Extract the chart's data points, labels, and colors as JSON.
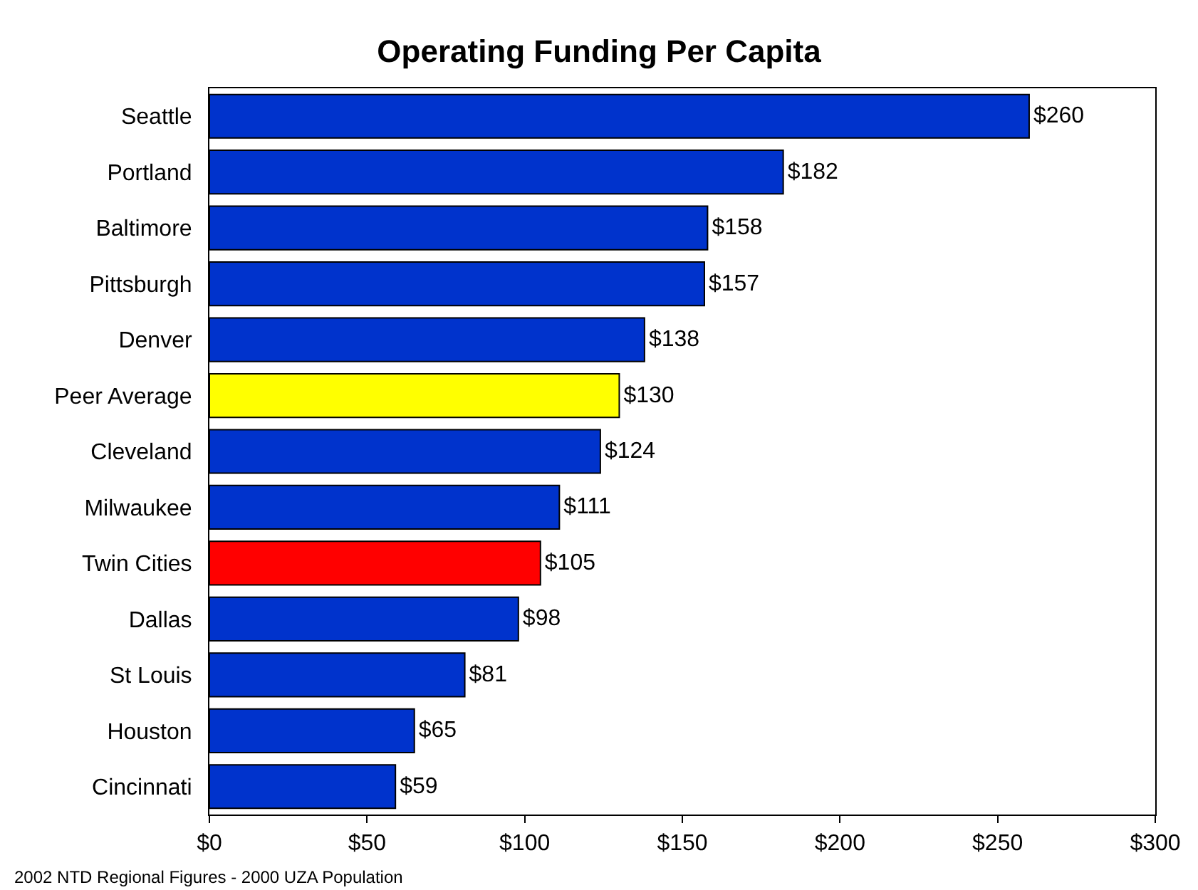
{
  "chart_data": {
    "type": "bar",
    "orientation": "horizontal",
    "title": "Operating Funding Per Capita",
    "categories": [
      "Seattle",
      "Portland",
      "Baltimore",
      "Pittsburgh",
      "Denver",
      "Peer Average",
      "Cleveland",
      "Milwaukee",
      "Twin Cities",
      "Dallas",
      "St Louis",
      "Houston",
      "Cincinnati"
    ],
    "values": [
      260,
      182,
      158,
      157,
      138,
      130,
      124,
      111,
      105,
      98,
      81,
      65,
      59
    ],
    "value_labels": [
      "$260",
      "$182",
      "$158",
      "$157",
      "$138",
      "$130",
      "$124",
      "$111",
      "$105",
      "$98",
      "$81",
      "$65",
      "$59"
    ],
    "colors": [
      "#0033cc",
      "#0033cc",
      "#0033cc",
      "#0033cc",
      "#0033cc",
      "#ffff00",
      "#0033cc",
      "#0033cc",
      "#ff0000",
      "#0033cc",
      "#0033cc",
      "#0033cc",
      "#0033cc"
    ],
    "xlim": [
      0,
      300
    ],
    "xticks": [
      {
        "value": 0,
        "label": "$0"
      },
      {
        "value": 50,
        "label": "$50"
      },
      {
        "value": 100,
        "label": "$100"
      },
      {
        "value": 150,
        "label": "$150"
      },
      {
        "value": 200,
        "label": "$200"
      },
      {
        "value": 250,
        "label": "$250"
      },
      {
        "value": 300,
        "label": "$300"
      }
    ],
    "legend": false,
    "annotations": [
      "2002 NTD Regional Figures - 2000 UZA Population"
    ]
  }
}
